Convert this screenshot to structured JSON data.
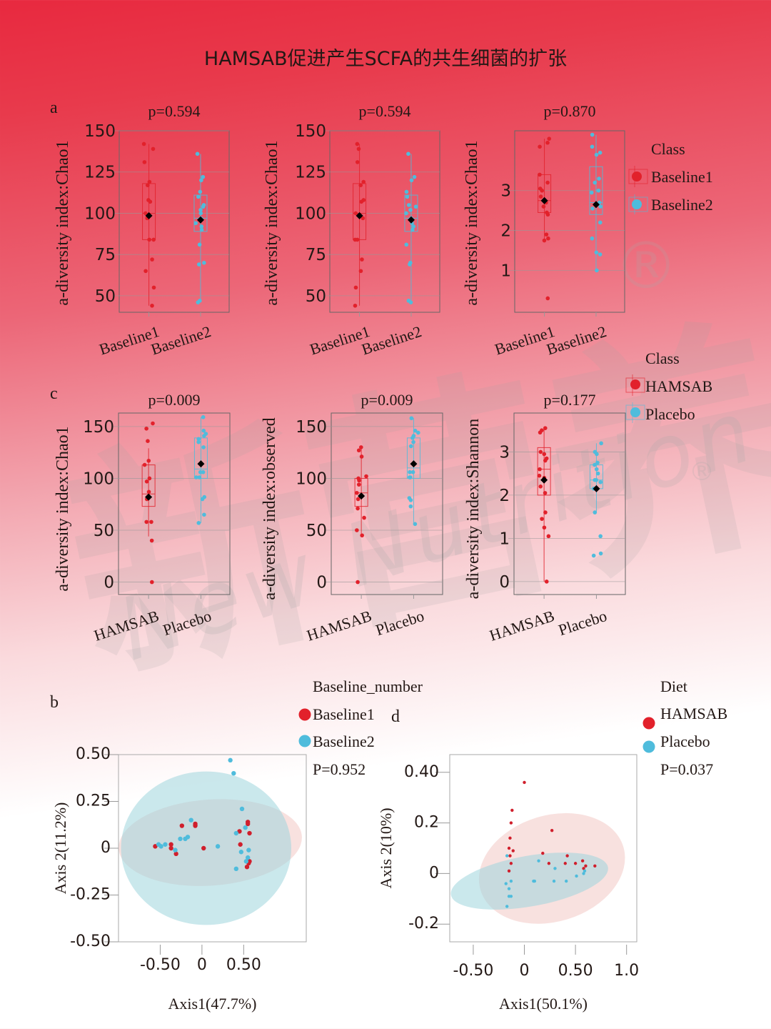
{
  "title": "HAMSAB促进产生SCFA的共生细菌的扩张",
  "watermark": {
    "cn": "新营养",
    "en": "New Nutrition Business",
    "reg": "®"
  },
  "colors": {
    "red": "#e2212b",
    "blue": "#4fbcdc",
    "red_ellipse": "#f2c9c4",
    "blue_ellipse": "#9fd6dc",
    "mean": "#000000"
  },
  "panel_labels": {
    "a": "a",
    "b": "b",
    "c": "c",
    "d": "d"
  },
  "legends": {
    "class_a": {
      "title": "Class",
      "items": [
        "Baseline1",
        "Baseline2"
      ]
    },
    "class_c": {
      "title": "Class",
      "items": [
        "HAMSAB",
        "Placebo"
      ]
    },
    "pcoa_b": {
      "title": "Baseline_number",
      "items": [
        "Baseline1",
        "Baseline2"
      ],
      "p": "P=0.952"
    },
    "pcoa_d": {
      "title": "Diet",
      "items": [
        "HAMSAB",
        "Placebo"
      ],
      "p": "P=0.037"
    }
  },
  "chart_data": [
    {
      "id": "a1",
      "type": "box",
      "title": "p=0.594",
      "ylabel": "a-diversity index:Chao1",
      "categories": [
        "Baseline1",
        "Baseline2"
      ],
      "ylim": [
        40,
        150
      ],
      "yticks": [
        50,
        75,
        100,
        125,
        150
      ],
      "series": [
        {
          "name": "Baseline1",
          "q1": 84,
          "median": 100,
          "q3": 118,
          "whisker_low": 44,
          "whisker_high": 142,
          "mean": 98.5,
          "points": [
            142,
            139,
            131,
            119,
            117,
            108,
            107,
            100,
            97,
            84,
            84,
            72,
            65,
            55,
            44
          ]
        },
        {
          "name": "Baseline2",
          "q1": 89,
          "median": 97,
          "q3": 111,
          "whisker_low": 46,
          "whisker_high": 136,
          "mean": 96,
          "points": [
            136,
            122,
            120,
            113,
            110,
            105,
            104,
            102,
            100,
            97,
            94,
            92,
            90,
            81,
            70,
            69,
            47,
            46
          ]
        }
      ]
    },
    {
      "id": "a2",
      "type": "box",
      "title": "p=0.594",
      "ylabel": "a-diversity index:Chao1",
      "categories": [
        "Baseline1",
        "Baseline2"
      ],
      "ylim": [
        40,
        150
      ],
      "yticks": [
        50,
        75,
        100,
        125,
        150
      ],
      "series": [
        {
          "name": "Baseline1",
          "q1": 84,
          "median": 100,
          "q3": 118,
          "whisker_low": 44,
          "whisker_high": 142,
          "mean": 98.5,
          "points": [
            142,
            139,
            131,
            119,
            117,
            108,
            107,
            100,
            97,
            84,
            84,
            72,
            65,
            55,
            44
          ]
        },
        {
          "name": "Baseline2",
          "q1": 89,
          "median": 97,
          "q3": 111,
          "whisker_low": 46,
          "whisker_high": 136,
          "mean": 96,
          "points": [
            136,
            122,
            120,
            113,
            110,
            105,
            104,
            102,
            100,
            97,
            94,
            92,
            90,
            81,
            70,
            69,
            47,
            46
          ]
        }
      ]
    },
    {
      "id": "a3",
      "type": "box",
      "title": "p=0.870",
      "ylabel": "a-diversity index:Chao1",
      "categories": [
        "Baseline1",
        "Baseline2"
      ],
      "ylim": [
        -0.05,
        4.5
      ],
      "yticks": [
        1,
        2,
        3
      ],
      "series": [
        {
          "name": "Baseline1",
          "q1": 2.45,
          "median": 2.75,
          "q3": 3.4,
          "whisker_low": 1.75,
          "whisker_high": 4.3,
          "mean": 2.75,
          "points": [
            4.3,
            4.2,
            4.1,
            3.4,
            3.2,
            3.05,
            3.0,
            2.85,
            2.7,
            2.6,
            2.45,
            2.4,
            1.9,
            1.8,
            1.75,
            0.3
          ]
        },
        {
          "name": "Baseline2",
          "q1": 2.4,
          "median": 2.7,
          "q3": 3.6,
          "whisker_low": 1.0,
          "whisker_high": 4.4,
          "mean": 2.65,
          "points": [
            4.4,
            4.1,
            3.95,
            3.9,
            3.3,
            3.2,
            3.0,
            2.95,
            2.7,
            2.6,
            2.55,
            2.2,
            1.8,
            1.45,
            1.4,
            1.0
          ]
        }
      ]
    },
    {
      "id": "c1",
      "type": "box",
      "title": "p=0.009",
      "ylabel": "a-diversity index:Chao1",
      "categories": [
        "HAMSAB",
        "Placebo"
      ],
      "ylim": [
        -12,
        163
      ],
      "yticks": [
        0,
        50,
        100,
        150
      ],
      "series": [
        {
          "name": "HAMSAB",
          "q1": 73,
          "median": 85,
          "q3": 113,
          "whisker_low": 44,
          "whisker_high": 129,
          "mean": 82,
          "points": [
            153,
            148,
            136,
            117,
            113,
            100,
            97,
            87,
            82,
            80,
            58,
            58,
            40,
            0
          ]
        },
        {
          "name": "Placebo",
          "q1": 100,
          "median": 109,
          "q3": 139,
          "whisker_low": 57,
          "whisker_high": 159,
          "mean": 114,
          "points": [
            159,
            146,
            143,
            141,
            138,
            135,
            130,
            106,
            106,
            101,
            101,
            82,
            80,
            65,
            57
          ]
        }
      ]
    },
    {
      "id": "c2",
      "type": "box",
      "title": "p=0.009",
      "ylabel": "a-diversity index:observed",
      "categories": [
        "HAMSAB",
        "Placebo"
      ],
      "ylim": [
        -12,
        163
      ],
      "yticks": [
        0,
        50,
        100,
        150
      ],
      "series": [
        {
          "name": "HAMSAB",
          "q1": 73,
          "median": 86,
          "q3": 100,
          "whisker_low": 45,
          "whisker_high": 130,
          "mean": 83,
          "points": [
            130,
            127,
            121,
            102,
            100,
            98,
            94,
            86,
            83,
            80,
            71,
            62,
            50,
            45,
            0
          ]
        },
        {
          "name": "Placebo",
          "q1": 100,
          "median": 110,
          "q3": 139,
          "whisker_low": 56,
          "whisker_high": 158,
          "mean": 114,
          "points": [
            158,
            146,
            144,
            141,
            139,
            135,
            131,
            106,
            106,
            101,
            101,
            81,
            79,
            73,
            56
          ]
        }
      ]
    },
    {
      "id": "c3",
      "type": "box",
      "title": "p=0.177",
      "ylabel": "a-diversity index:Shannon",
      "categories": [
        "HAMSAB",
        "Placebo"
      ],
      "ylim": [
        -0.3,
        3.9
      ],
      "yticks": [
        0,
        1,
        2,
        3
      ],
      "series": [
        {
          "name": "HAMSAB",
          "q1": 2.0,
          "median": 2.6,
          "q3": 3.1,
          "whisker_low": 0.0,
          "whisker_high": 3.55,
          "mean": 2.35,
          "points": [
            3.55,
            3.45,
            3.5,
            3.0,
            2.95,
            2.85,
            2.8,
            2.6,
            2.45,
            2.4,
            2.2,
            2.05,
            1.6,
            1.45,
            1.25,
            1.05,
            0.0
          ]
        },
        {
          "name": "Placebo",
          "q1": 2.15,
          "median": 2.35,
          "q3": 2.7,
          "whisker_low": 1.6,
          "whisker_high": 3.2,
          "mean": 2.15,
          "points": [
            3.2,
            3.0,
            2.95,
            2.75,
            2.7,
            2.6,
            2.5,
            2.35,
            2.35,
            2.3,
            2.15,
            2.15,
            1.6,
            1.05,
            0.65,
            0.6
          ]
        }
      ]
    },
    {
      "id": "b",
      "type": "scatter",
      "title": "",
      "xlabel": "Axis1(47.7%)",
      "ylabel": "Axis 2(11.2%)",
      "xlim": [
        -1.0,
        1.25
      ],
      "ylim": [
        -0.5,
        0.5
      ],
      "xticks": [
        -0.5,
        0,
        0.5
      ],
      "xtick_labels": [
        "-0.50",
        "0",
        "0.50"
      ],
      "yticks": [
        -0.5,
        -0.25,
        0,
        0.25,
        0.5
      ],
      "ytick_labels": [
        "-0.50",
        "-0.25",
        "0",
        "0.25",
        "0.50"
      ],
      "ellipses": [
        {
          "group": "Baseline1",
          "cx": 0.1,
          "cy": 0.03,
          "rx": 1.1,
          "ry": 0.23,
          "angle": -4
        },
        {
          "group": "Baseline2",
          "cx": 0.05,
          "cy": 0.0,
          "rx": 1.02,
          "ry": 0.41,
          "angle": 0
        }
      ],
      "series": [
        {
          "name": "Baseline1",
          "points": [
            [
              -0.56,
              0.01
            ],
            [
              -0.37,
              0.02
            ],
            [
              -0.37,
              0.0
            ],
            [
              -0.31,
              -0.03
            ],
            [
              -0.24,
              0.12
            ],
            [
              -0.08,
              0.13
            ],
            [
              -0.08,
              0.12
            ],
            [
              0.02,
              0.0
            ],
            [
              0.45,
              0.09
            ],
            [
              0.46,
              0.02
            ],
            [
              0.55,
              0.14
            ],
            [
              0.55,
              0.13
            ],
            [
              0.57,
              0.08
            ],
            [
              0.54,
              -0.1
            ],
            [
              0.56,
              -0.08
            ],
            [
              0.57,
              -0.07
            ]
          ]
        },
        {
          "name": "Baseline2",
          "points": [
            [
              -0.52,
              0.02
            ],
            [
              -0.49,
              0.01
            ],
            [
              -0.44,
              0.02
            ],
            [
              -0.32,
              -0.01
            ],
            [
              -0.26,
              0.05
            ],
            [
              -0.2,
              0.05
            ],
            [
              -0.17,
              0.06
            ],
            [
              -0.13,
              0.15
            ],
            [
              0.19,
              0.01
            ],
            [
              0.34,
              0.47
            ],
            [
              0.38,
              0.4
            ],
            [
              0.48,
              0.21
            ],
            [
              0.41,
              0.08
            ],
            [
              0.52,
              0.11
            ],
            [
              0.47,
              -0.02
            ],
            [
              0.56,
              -0.01
            ],
            [
              0.55,
              -0.05
            ],
            [
              0.53,
              -0.07
            ],
            [
              0.41,
              -0.11
            ]
          ]
        }
      ]
    },
    {
      "id": "d",
      "type": "scatter",
      "title": "",
      "xlabel": "Axis1(50.1%)",
      "ylabel": "Axis 2(10%)",
      "xlim": [
        -0.73,
        1.1
      ],
      "ylim": [
        -0.27,
        0.47
      ],
      "xticks": [
        -0.5,
        0,
        0.5,
        1.0
      ],
      "xtick_labels": [
        "-0.50",
        "0",
        "0.50",
        "1.0"
      ],
      "yticks": [
        -0.2,
        0,
        0.2,
        0.4
      ],
      "ytick_labels": [
        "-0.2",
        "0",
        "0.2",
        "0.40"
      ],
      "ellipses": [
        {
          "group": "HAMSAB",
          "cx": 0.27,
          "cy": 0.02,
          "rx": 0.73,
          "ry": 0.21,
          "angle": -17
        },
        {
          "group": "Placebo",
          "cx": 0.05,
          "cy": -0.03,
          "rx": 0.78,
          "ry": 0.1,
          "angle": -10
        }
      ],
      "series": [
        {
          "name": "HAMSAB",
          "points": [
            [
              0.0,
              0.36
            ],
            [
              -0.12,
              0.25
            ],
            [
              -0.13,
              0.2
            ],
            [
              -0.14,
              0.14
            ],
            [
              -0.15,
              0.1
            ],
            [
              -0.11,
              0.09
            ],
            [
              -0.14,
              0.07
            ],
            [
              -0.13,
              0.04
            ],
            [
              -0.15,
              0.01
            ],
            [
              0.18,
              0.08
            ],
            [
              0.24,
              0.04
            ],
            [
              0.27,
              0.17
            ],
            [
              0.4,
              0.04
            ],
            [
              0.42,
              0.07
            ],
            [
              0.5,
              0.04
            ],
            [
              0.57,
              0.05
            ],
            [
              0.58,
              0.02
            ],
            [
              0.6,
              0.03
            ],
            [
              0.69,
              0.03
            ]
          ]
        },
        {
          "name": "Placebo",
          "points": [
            [
              -0.17,
              0.07
            ],
            [
              -0.13,
              -0.03
            ],
            [
              -0.18,
              -0.04
            ],
            [
              -0.15,
              -0.06
            ],
            [
              -0.15,
              -0.09
            ],
            [
              -0.13,
              -0.09
            ],
            [
              -0.17,
              -0.13
            ],
            [
              0.09,
              -0.03
            ],
            [
              0.1,
              -0.03
            ],
            [
              0.14,
              0.05
            ],
            [
              0.3,
              0.02
            ],
            [
              0.29,
              -0.03
            ],
            [
              0.41,
              -0.03
            ],
            [
              0.51,
              -0.01
            ],
            [
              0.58,
              0.0
            ],
            [
              0.59,
              0.01
            ]
          ]
        }
      ]
    }
  ]
}
